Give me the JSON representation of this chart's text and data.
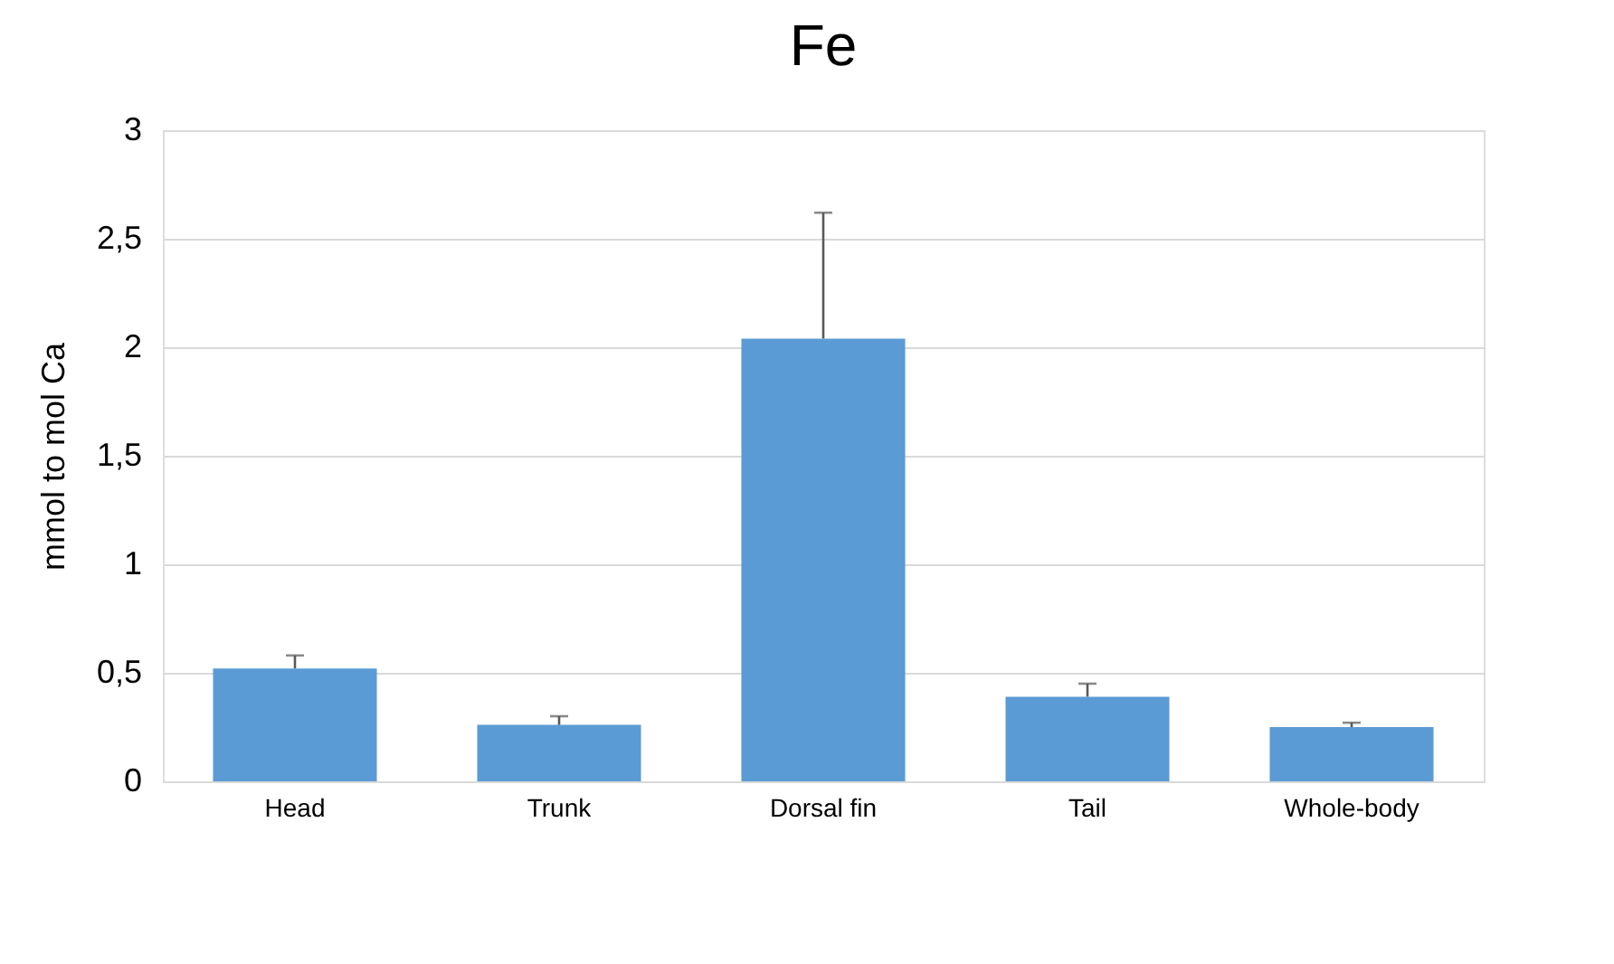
{
  "chart_data": {
    "type": "bar",
    "title": "Fe",
    "ylabel": "mmol to mol Ca",
    "categories": [
      "Head",
      "Trunk",
      "Dorsal fin",
      "Tail",
      "Whole-body"
    ],
    "values": [
      0.52,
      0.26,
      2.04,
      0.39,
      0.25
    ],
    "errors": [
      [
        0.52,
        0.58
      ],
      [
        0.26,
        0.3
      ],
      [
        2.04,
        2.62
      ],
      [
        0.39,
        0.45
      ],
      [
        0.25,
        0.27
      ]
    ],
    "color": "#5b9bd5",
    "ylim": [
      0,
      3
    ],
    "yticks": [
      0,
      {
        "value": 0.5,
        "label": "0,5"
      },
      1,
      {
        "value": 1.5,
        "label": "1,5"
      },
      2,
      {
        "value": 2.5,
        "label": "2,5"
      },
      3
    ],
    "grid": "y"
  }
}
